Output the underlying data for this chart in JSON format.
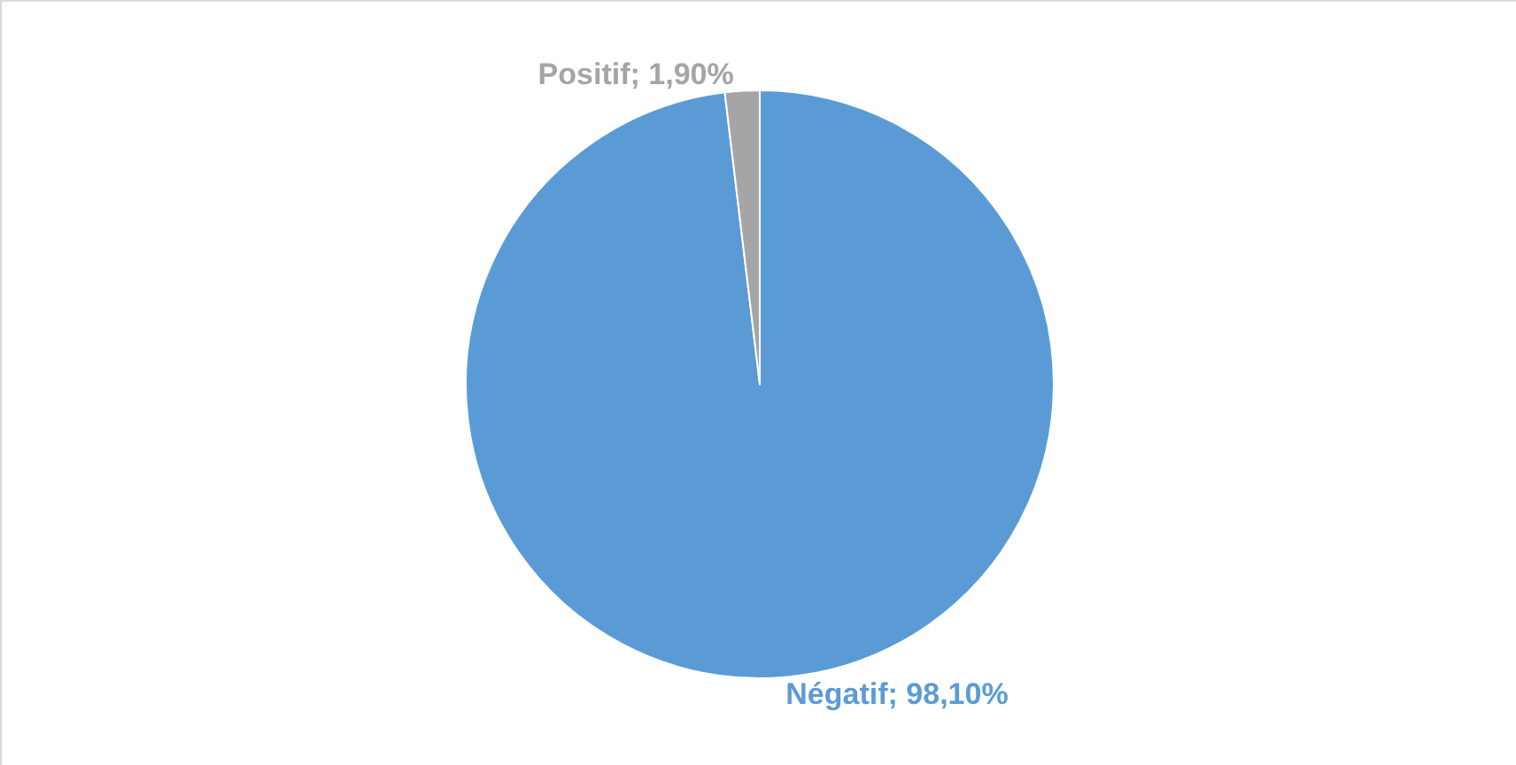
{
  "chart_data": {
    "type": "pie",
    "categories": [
      "Négatif",
      "Positif"
    ],
    "values": [
      98.1,
      1.9
    ],
    "colors": [
      "#5b9bd5",
      "#a5a5a5"
    ],
    "value_labels": [
      "98,10%",
      "1,90%"
    ],
    "legend": false
  }
}
